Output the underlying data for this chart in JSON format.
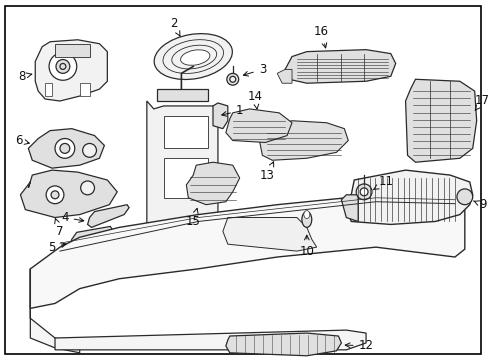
{
  "background_color": "#ffffff",
  "border_color": "#000000",
  "figsize": [
    4.9,
    3.6
  ],
  "dpi": 100,
  "font_size": 8.5,
  "line_width": 0.9,
  "ec": "#2a2a2a",
  "fc_light": "#f2f2f2",
  "fc_med": "#e0e0e0",
  "fc_dark": "#cccccc"
}
